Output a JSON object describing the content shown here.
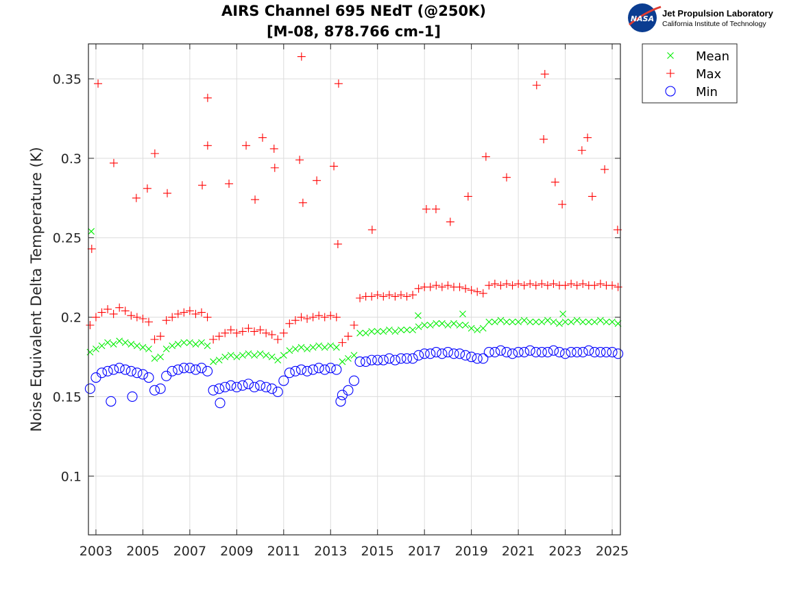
{
  "logo": {
    "nasa_text": "NASA",
    "org": "Jet Propulsion Laboratory",
    "sub": "California Institute of Technology"
  },
  "chart_data": {
    "type": "scatter",
    "title": "AIRS Channel 695 NEdT (@250K)",
    "subtitle": "[M-08, 878.766 cm-1]",
    "xlabel": "",
    "ylabel": "Noise Equivalent Delta Temperature (K)",
    "xlim": [
      2002.68,
      2025.35
    ],
    "ylim": [
      0.063,
      0.372
    ],
    "grid": true,
    "legend_position": "outside-right",
    "x_ticks": [
      "2003",
      "2005",
      "2007",
      "2009",
      "2011",
      "2013",
      "2015",
      "2017",
      "2019",
      "2021",
      "2023",
      "2025"
    ],
    "y_ticks": [
      "0.1",
      "0.15",
      "0.2",
      "0.25",
      "0.3",
      "0.35"
    ],
    "x": [
      2002.75,
      2003.0,
      2003.25,
      2003.5,
      2003.75,
      2004.0,
      2004.25,
      2004.5,
      2004.75,
      2005.0,
      2005.25,
      2005.5,
      2005.75,
      2006.0,
      2006.25,
      2006.5,
      2006.75,
      2007.0,
      2007.25,
      2007.5,
      2007.75,
      2008.0,
      2008.25,
      2008.5,
      2008.75,
      2009.0,
      2009.25,
      2009.5,
      2009.75,
      2010.0,
      2010.25,
      2010.5,
      2010.75,
      2011.0,
      2011.25,
      2011.5,
      2011.75,
      2012.0,
      2012.25,
      2012.5,
      2012.75,
      2013.0,
      2013.25,
      2013.5,
      2013.75,
      2014.0,
      2014.25,
      2014.5,
      2014.75,
      2015.0,
      2015.25,
      2015.5,
      2015.75,
      2016.0,
      2016.25,
      2016.5,
      2016.75,
      2017.0,
      2017.25,
      2017.5,
      2017.75,
      2018.0,
      2018.25,
      2018.5,
      2018.75,
      2019.0,
      2019.25,
      2019.5,
      2019.75,
      2020.0,
      2020.25,
      2020.5,
      2020.75,
      2021.0,
      2021.25,
      2021.5,
      2021.75,
      2022.0,
      2022.25,
      2022.5,
      2022.75,
      2023.0,
      2023.25,
      2023.5,
      2023.75,
      2024.0,
      2024.25,
      2024.5,
      2024.75,
      2025.0,
      2025.25
    ],
    "series": [
      {
        "name": "Mean",
        "marker": "x",
        "color": "#00ee00",
        "values": [
          0.178,
          0.18,
          0.182,
          0.184,
          0.183,
          0.185,
          0.184,
          0.183,
          0.182,
          0.181,
          0.18,
          0.174,
          0.175,
          0.18,
          0.182,
          0.183,
          0.184,
          0.184,
          0.183,
          0.184,
          0.182,
          0.172,
          0.173,
          0.175,
          0.176,
          0.175,
          0.176,
          0.177,
          0.176,
          0.177,
          0.176,
          0.175,
          0.173,
          0.176,
          0.179,
          0.18,
          0.181,
          0.18,
          0.181,
          0.182,
          0.181,
          0.182,
          0.181,
          0.172,
          0.174,
          0.176,
          0.19,
          0.19,
          0.191,
          0.191,
          0.191,
          0.192,
          0.191,
          0.192,
          0.192,
          0.192,
          0.194,
          0.195,
          0.195,
          0.196,
          0.196,
          0.195,
          0.196,
          0.195,
          0.195,
          0.193,
          0.192,
          0.193,
          0.197,
          0.197,
          0.198,
          0.197,
          0.197,
          0.197,
          0.198,
          0.197,
          0.197,
          0.197,
          0.198,
          0.197,
          0.196,
          0.197,
          0.197,
          0.198,
          0.197,
          0.197,
          0.197,
          0.198,
          0.197,
          0.197,
          0.196
        ],
        "outliers": [
          [
            2002.8,
            0.254
          ],
          [
            2016.73,
            0.201
          ],
          [
            2018.63,
            0.202
          ],
          [
            2022.9,
            0.202
          ]
        ]
      },
      {
        "name": "Max",
        "marker": "+",
        "color": "#ff0000",
        "values": [
          0.195,
          0.2,
          0.203,
          0.205,
          0.202,
          0.206,
          0.204,
          0.201,
          0.2,
          0.199,
          0.197,
          0.186,
          0.188,
          0.198,
          0.2,
          0.202,
          0.203,
          0.204,
          0.202,
          0.203,
          0.2,
          0.186,
          0.188,
          0.19,
          0.192,
          0.19,
          0.191,
          0.193,
          0.191,
          0.192,
          0.19,
          0.189,
          0.186,
          0.19,
          0.196,
          0.198,
          0.2,
          0.199,
          0.2,
          0.201,
          0.2,
          0.201,
          0.2,
          0.184,
          0.188,
          0.195,
          0.212,
          0.213,
          0.213,
          0.214,
          0.213,
          0.214,
          0.213,
          0.214,
          0.213,
          0.214,
          0.218,
          0.219,
          0.219,
          0.22,
          0.219,
          0.22,
          0.219,
          0.219,
          0.218,
          0.217,
          0.216,
          0.215,
          0.22,
          0.221,
          0.22,
          0.221,
          0.22,
          0.221,
          0.22,
          0.221,
          0.22,
          0.221,
          0.22,
          0.221,
          0.22,
          0.22,
          0.221,
          0.22,
          0.221,
          0.22,
          0.22,
          0.221,
          0.22,
          0.22,
          0.219
        ],
        "outliers": [
          [
            2002.82,
            0.243
          ],
          [
            2003.09,
            0.347
          ],
          [
            2003.76,
            0.297
          ],
          [
            2005.51,
            0.303
          ],
          [
            2005.19,
            0.281
          ],
          [
            2004.72,
            0.275
          ],
          [
            2006.04,
            0.278
          ],
          [
            2007.76,
            0.338
          ],
          [
            2007.76,
            0.308
          ],
          [
            2007.53,
            0.283
          ],
          [
            2008.67,
            0.284
          ],
          [
            2009.4,
            0.308
          ],
          [
            2010.1,
            0.313
          ],
          [
            2010.59,
            0.306
          ],
          [
            2010.62,
            0.294
          ],
          [
            2009.78,
            0.274
          ],
          [
            2011.68,
            0.299
          ],
          [
            2011.76,
            0.364
          ],
          [
            2011.82,
            0.272
          ],
          [
            2012.41,
            0.286
          ],
          [
            2013.34,
            0.347
          ],
          [
            2013.14,
            0.295
          ],
          [
            2013.31,
            0.246
          ],
          [
            2014.77,
            0.255
          ],
          [
            2017.08,
            0.268
          ],
          [
            2017.49,
            0.268
          ],
          [
            2018.1,
            0.26
          ],
          [
            2018.86,
            0.276
          ],
          [
            2019.62,
            0.301
          ],
          [
            2020.5,
            0.288
          ],
          [
            2021.78,
            0.346
          ],
          [
            2022.13,
            0.353
          ],
          [
            2022.08,
            0.312
          ],
          [
            2022.57,
            0.285
          ],
          [
            2022.87,
            0.271
          ],
          [
            2023.95,
            0.313
          ],
          [
            2023.71,
            0.305
          ],
          [
            2024.15,
            0.276
          ],
          [
            2024.68,
            0.293
          ],
          [
            2025.23,
            0.255
          ]
        ]
      },
      {
        "name": "Min",
        "marker": "o",
        "color": "#0000ff",
        "values": [
          0.155,
          0.162,
          0.165,
          0.166,
          0.167,
          0.168,
          0.167,
          0.166,
          0.165,
          0.164,
          0.162,
          0.154,
          0.155,
          0.163,
          0.166,
          0.167,
          0.168,
          0.168,
          0.167,
          0.168,
          0.166,
          0.154,
          0.155,
          0.156,
          0.157,
          0.156,
          0.157,
          0.158,
          0.156,
          0.157,
          0.156,
          0.155,
          0.153,
          0.16,
          0.165,
          0.166,
          0.167,
          0.166,
          0.167,
          0.168,
          0.167,
          0.168,
          0.167,
          0.151,
          0.154,
          0.16,
          0.172,
          0.172,
          0.173,
          0.173,
          0.173,
          0.174,
          0.173,
          0.174,
          0.174,
          0.174,
          0.176,
          0.177,
          0.177,
          0.178,
          0.177,
          0.178,
          0.177,
          0.177,
          0.176,
          0.175,
          0.174,
          0.174,
          0.178,
          0.178,
          0.179,
          0.178,
          0.177,
          0.178,
          0.178,
          0.179,
          0.178,
          0.178,
          0.178,
          0.179,
          0.178,
          0.177,
          0.178,
          0.178,
          0.178,
          0.179,
          0.178,
          0.178,
          0.178,
          0.178,
          0.177
        ],
        "outliers": [
          [
            2003.64,
            0.147
          ],
          [
            2004.55,
            0.15
          ],
          [
            2008.29,
            0.146
          ],
          [
            2013.43,
            0.147
          ]
        ]
      }
    ]
  }
}
